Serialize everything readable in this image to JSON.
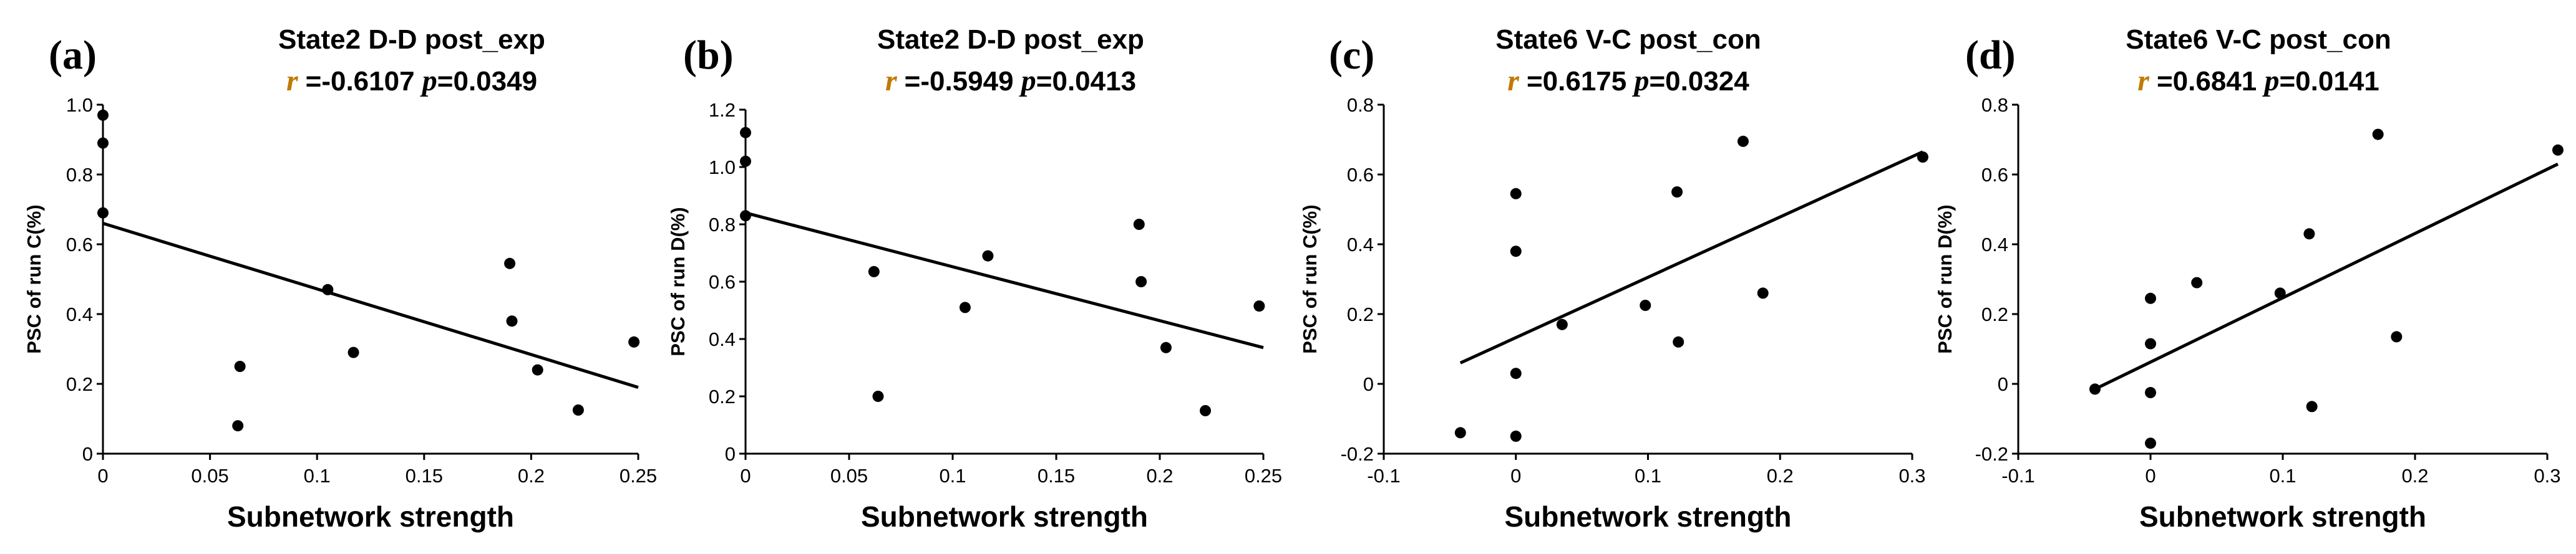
{
  "chart_data": [
    {
      "type": "scatter",
      "panel_label": "(a)",
      "title": "State2 D-D post_exp",
      "stats": {
        "r_symbol": "r",
        "r_value": "=-0.6107",
        "p_symbol": "p",
        "p_value": "=0.0349"
      },
      "xlabel": "Subnetwork strength",
      "ylabel": "PSC of run C(%)",
      "xlim": [
        0,
        0.25
      ],
      "ylim": [
        0,
        1.0
      ],
      "x_ticks": [
        "0",
        "0.05",
        "0.1",
        "0.15",
        "0.2",
        "0.25"
      ],
      "y_ticks": [
        "0",
        "0.2",
        "0.4",
        "0.6",
        "0.8",
        "1.0"
      ],
      "points": [
        [
          0.0,
          0.97
        ],
        [
          0.0,
          0.89
        ],
        [
          0.0,
          0.69
        ],
        [
          0.063,
          0.08
        ],
        [
          0.064,
          0.25
        ],
        [
          0.105,
          0.47
        ],
        [
          0.117,
          0.29
        ],
        [
          0.19,
          0.545
        ],
        [
          0.191,
          0.38
        ],
        [
          0.203,
          0.24
        ],
        [
          0.222,
          0.125
        ],
        [
          0.248,
          0.32
        ]
      ],
      "fit_line": [
        [
          0.0,
          0.66
        ],
        [
          0.25,
          0.19
        ]
      ]
    },
    {
      "type": "scatter",
      "panel_label": "(b)",
      "title": "State2 D-D post_exp",
      "stats": {
        "r_symbol": "r",
        "r_value": "=-0.5949",
        "p_symbol": "p",
        "p_value": "=0.0413"
      },
      "xlabel": "Subnetwork strength",
      "ylabel": "PSC of run D(%)",
      "xlim": [
        0,
        0.25
      ],
      "ylim": [
        0,
        1.2
      ],
      "x_ticks": [
        "0",
        "0.05",
        "0.1",
        "0.15",
        "0.2",
        "0.25"
      ],
      "y_ticks": [
        "0",
        "0.2",
        "0.4",
        "0.6",
        "0.8",
        "1.0",
        "1.2"
      ],
      "points": [
        [
          0.0,
          1.12
        ],
        [
          0.0,
          1.02
        ],
        [
          0.0,
          0.83
        ],
        [
          0.062,
          0.635
        ],
        [
          0.064,
          0.2
        ],
        [
          0.106,
          0.51
        ],
        [
          0.117,
          0.69
        ],
        [
          0.19,
          0.8
        ],
        [
          0.191,
          0.6
        ],
        [
          0.203,
          0.37
        ],
        [
          0.222,
          0.15
        ],
        [
          0.248,
          0.515
        ]
      ],
      "fit_line": [
        [
          0.0,
          0.84
        ],
        [
          0.25,
          0.37
        ]
      ]
    },
    {
      "type": "scatter",
      "panel_label": "(c)",
      "title": "State6 V-C post_con",
      "stats": {
        "r_symbol": "r",
        "r_value": "=0.6175",
        "p_symbol": "p",
        "p_value": "=0.0324"
      },
      "xlabel": "Subnetwork strength",
      "ylabel": "PSC of run C(%)",
      "xlim": [
        -0.1,
        0.3
      ],
      "ylim": [
        -0.2,
        0.8
      ],
      "x_ticks": [
        "-0.1",
        "0",
        "0.1",
        "0.2",
        "0.3"
      ],
      "y_ticks": [
        "-0.2",
        "0",
        "0.2",
        "0.4",
        "0.6",
        "0.8"
      ],
      "points": [
        [
          -0.042,
          -0.14
        ],
        [
          0.0,
          0.545
        ],
        [
          0.0,
          0.38
        ],
        [
          0.0,
          0.03
        ],
        [
          0.0,
          -0.15
        ],
        [
          0.035,
          0.17
        ],
        [
          0.098,
          0.225
        ],
        [
          0.122,
          0.55
        ],
        [
          0.123,
          0.12
        ],
        [
          0.172,
          0.695
        ],
        [
          0.187,
          0.26
        ],
        [
          0.308,
          0.65
        ]
      ],
      "fit_line": [
        [
          -0.042,
          0.06
        ],
        [
          0.308,
          0.665
        ]
      ]
    },
    {
      "type": "scatter",
      "panel_label": "(d)",
      "title": "State6 V-C post_con",
      "stats": {
        "r_symbol": "r",
        "r_value": "=0.6841",
        "p_symbol": "p",
        "p_value": "=0.0141"
      },
      "xlabel": "Subnetwork strength",
      "ylabel": "PSC of run D(%)",
      "xlim": [
        -0.1,
        0.3
      ],
      "ylim": [
        -0.2,
        0.8
      ],
      "x_ticks": [
        "-0.1",
        "0",
        "0.1",
        "0.2",
        "0.3"
      ],
      "y_ticks": [
        "-0.2",
        "0",
        "0.2",
        "0.4",
        "0.6",
        "0.8"
      ],
      "points": [
        [
          -0.042,
          -0.015
        ],
        [
          0.0,
          0.245
        ],
        [
          0.0,
          0.115
        ],
        [
          0.0,
          -0.025
        ],
        [
          0.0,
          -0.17
        ],
        [
          0.035,
          0.29
        ],
        [
          0.098,
          0.26
        ],
        [
          0.12,
          0.43
        ],
        [
          0.122,
          -0.065
        ],
        [
          0.172,
          0.715
        ],
        [
          0.186,
          0.135
        ],
        [
          0.308,
          0.67
        ]
      ],
      "fit_line": [
        [
          -0.042,
          -0.015
        ],
        [
          0.308,
          0.63
        ]
      ]
    }
  ]
}
